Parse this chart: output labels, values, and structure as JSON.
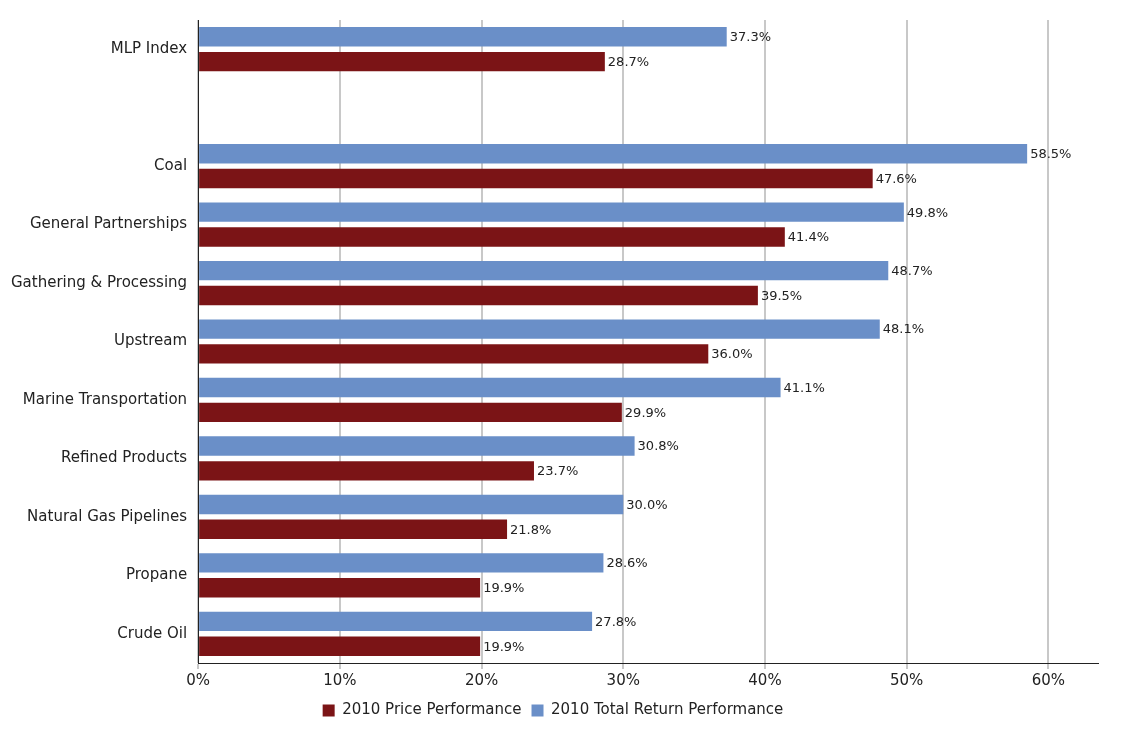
{
  "chart_data": {
    "type": "bar",
    "orientation": "horizontal",
    "categories": [
      "MLP Index",
      null,
      "Coal",
      "General Partnerships",
      "Gathering & Processing",
      "Upstream",
      "Marine Transportation",
      "Refined Products",
      "Natural Gas Pipelines",
      "Propane",
      "Crude Oil"
    ],
    "series": [
      {
        "name": "2010 Price Performance",
        "color": "#7b1416",
        "values": [
          28.7,
          null,
          47.6,
          41.4,
          39.5,
          36.0,
          29.9,
          23.7,
          21.8,
          19.9,
          19.9
        ],
        "value_labels": [
          "28.7%",
          null,
          "47.6%",
          "41.4%",
          "39.5%",
          "36.0%",
          "29.9%",
          "23.7%",
          "21.8%",
          "19.9%",
          "19.9%"
        ]
      },
      {
        "name": "2010 Total Return Performance",
        "color": "#6a8fc8",
        "values": [
          37.3,
          null,
          58.5,
          49.8,
          48.7,
          48.1,
          41.1,
          30.8,
          30.0,
          28.6,
          27.8
        ],
        "value_labels": [
          "37.3%",
          null,
          "58.5%",
          "49.8%",
          "48.7%",
          "48.1%",
          "41.1%",
          "30.8%",
          "30.0%",
          "28.6%",
          "27.8%"
        ]
      }
    ],
    "xlim": [
      0,
      63.5
    ],
    "xticks": [
      {
        "value": 0,
        "label": "0%"
      },
      {
        "value": 10,
        "label": "10%"
      },
      {
        "value": 20,
        "label": "20%"
      },
      {
        "value": 30,
        "label": "30%"
      },
      {
        "value": 40,
        "label": "40%"
      },
      {
        "value": 50,
        "label": "50%"
      },
      {
        "value": 60,
        "label": "60%"
      }
    ],
    "grid": "x",
    "legend": "bottom"
  }
}
